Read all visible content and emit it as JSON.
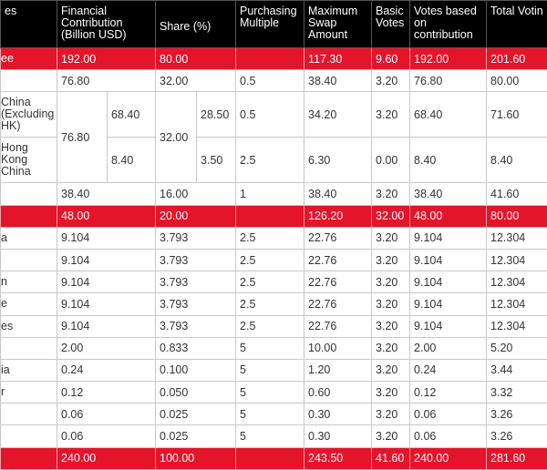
{
  "header": {
    "parties": "es",
    "contribution": "Financial Contribution (Billion USD)",
    "share": "Share (%)",
    "multiple": "Purchasing Multiple",
    "swap": "Maximum Swap Amount",
    "basic": "Basic Votes",
    "votes": "Votes based on contribution",
    "total": "Total Votin"
  },
  "rows": [
    {
      "label": "ee",
      "highlight": true,
      "contribution": "192.00",
      "share": "80.00",
      "swap": "117.30",
      "basic": "9.60",
      "votes": "192.00",
      "total": "201.60"
    },
    {
      "contribution": "76.80",
      "share": "32.00",
      "multiple": "0.5",
      "swap": "38.40",
      "basic": "3.20",
      "votes": "76.80",
      "total": "80.00"
    },
    {
      "contribution": "76.80",
      "share": "32.00",
      "parts": [
        {
          "label": "China (Excluding HK)",
          "contribution": "68.40",
          "share": "28.50",
          "multiple": "0.5",
          "swap": "34.20",
          "basic": "3.20",
          "votes": "68.40",
          "total": "71.60"
        },
        {
          "label": "Hong Kong China",
          "contribution": "8.40",
          "share": "3.50",
          "multiple": "2.5",
          "swap": "6.30",
          "basic": "0.00",
          "votes": "8.40",
          "total": "8.40"
        }
      ]
    },
    {
      "contribution": "38.40",
      "share": "16.00",
      "multiple": "1",
      "swap": "38.40",
      "basic": "3.20",
      "votes": "38.40",
      "total": "41.60"
    },
    {
      "highlight": true,
      "contribution": "48.00",
      "share": "20.00",
      "swap": "126.20",
      "basic": "32.00",
      "votes": "48.00",
      "total": "80.00"
    },
    {
      "label": "a",
      "contribution": "9.104",
      "share": "3.793",
      "multiple": "2.5",
      "swap": "22.76",
      "basic": "3.20",
      "votes": "9.104",
      "total": "12.304"
    },
    {
      "contribution": "9.104",
      "share": "3.793",
      "multiple": "2.5",
      "swap": "22.76",
      "basic": "3.20",
      "votes": "9.104",
      "total": "12.304"
    },
    {
      "label": "n",
      "contribution": "9.104",
      "share": "3.793",
      "multiple": "2.5",
      "swap": "22.76",
      "basic": "3.20",
      "votes": "9.104",
      "total": "12.304"
    },
    {
      "label": "e",
      "contribution": "9.104",
      "share": "3.793",
      "multiple": "2.5",
      "swap": "22.76",
      "basic": "3.20",
      "votes": "9.104",
      "total": "12.304"
    },
    {
      "label": "es",
      "contribution": "9.104",
      "share": "3.793",
      "multiple": "2.5",
      "swap": "22.76",
      "basic": "3.20",
      "votes": "9.104",
      "total": "12.304"
    },
    {
      "contribution": "2.00",
      "share": "0.833",
      "multiple": "5",
      "swap": "10.00",
      "basic": "3.20",
      "votes": "2.00",
      "total": "5.20"
    },
    {
      "label": "ia",
      "contribution": "0.24",
      "share": "0.100",
      "multiple": "5",
      "swap": "1.20",
      "basic": "3.20",
      "votes": "0.24",
      "total": "3.44"
    },
    {
      "label": "r",
      "contribution": "0.12",
      "share": "0.050",
      "multiple": "5",
      "swap": "0.60",
      "basic": "3.20",
      "votes": "0.12",
      "total": "3.32"
    },
    {
      "contribution": "0.06",
      "share": "0.025",
      "multiple": "5",
      "swap": "0.30",
      "basic": "3.20",
      "votes": "0.06",
      "total": "3.26"
    },
    {
      "contribution": "0.06",
      "share": "0.025",
      "multiple": "5",
      "swap": "0.30",
      "basic": "3.20",
      "votes": "0.06",
      "total": "3.26"
    },
    {
      "highlight": true,
      "contribution": "240.00",
      "share": "100.00",
      "swap": "243.50",
      "basic": "41.60",
      "votes": "240.00",
      "total": "281.60"
    }
  ]
}
